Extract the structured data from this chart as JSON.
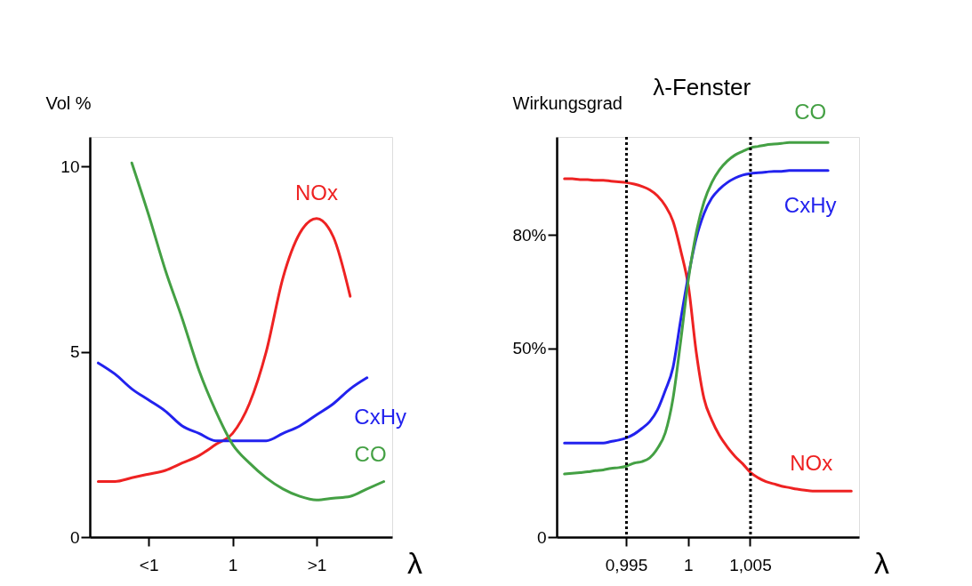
{
  "chart_data": [
    {
      "type": "line",
      "ylabel": "Vol %",
      "xlabel": "λ",
      "categories": [
        null,
        null,
        null,
        "<1",
        null,
        null,
        null,
        null,
        "1",
        null,
        null,
        null,
        null,
        ">1",
        null,
        null,
        null,
        null
      ],
      "ylim": [
        0,
        10.8
      ],
      "yticks": [
        0,
        5,
        10
      ],
      "grid": false,
      "marker": "none",
      "line_style": "solid",
      "series": [
        {
          "name": "NOx",
          "color": "#ee2222",
          "values": [
            1.5,
            1.5,
            1.6,
            1.7,
            1.8,
            2.0,
            2.2,
            2.5,
            2.8,
            3.6,
            5.0,
            7.0,
            8.2,
            8.6,
            8.1,
            6.5,
            null,
            null
          ]
        },
        {
          "name": "CxHy",
          "color": "#2222ee",
          "values": [
            4.7,
            4.4,
            4.0,
            3.7,
            3.4,
            3.0,
            2.8,
            2.6,
            2.6,
            2.6,
            2.6,
            2.8,
            3.0,
            3.3,
            3.6,
            4.0,
            4.3,
            null
          ]
        },
        {
          "name": "CO",
          "color": "#44a044",
          "values": [
            null,
            null,
            10.1,
            8.7,
            7.2,
            5.9,
            4.5,
            3.4,
            2.5,
            2.0,
            1.6,
            1.3,
            1.1,
            1.0,
            1.05,
            1.1,
            1.3,
            1.5
          ]
        }
      ]
    },
    {
      "type": "line",
      "ylabel": "Wirkungsgrad",
      "xlabel": "λ",
      "categories": [
        null,
        null,
        null,
        null,
        null,
        null,
        null,
        null,
        "0,995",
        null,
        null,
        null,
        null,
        null,
        null,
        null,
        "1",
        null,
        null,
        null,
        null,
        null,
        null,
        null,
        "1,005",
        null,
        null,
        null,
        null,
        null,
        null,
        null,
        null,
        null,
        null,
        null,
        null,
        null
      ],
      "ylim": [
        0,
        106
      ],
      "yticks": [
        0,
        {
          "value": 50,
          "label": "50%"
        },
        {
          "value": 80,
          "label": "80%"
        }
      ],
      "grid": false,
      "marker": "none",
      "line_style": "solid",
      "annotations": [
        "λ-Fenster"
      ],
      "ref_lines": [
        {
          "axis": "x",
          "value": "0,995",
          "color": "#000000",
          "line_style": "dotted"
        },
        {
          "axis": "x",
          "value": "1,005",
          "color": "#000000",
          "line_style": "dotted"
        }
      ],
      "series": [
        {
          "name": "NOx",
          "color": "#ee2222",
          "values": [
            94.9,
            94.9,
            94.7,
            94.7,
            94.5,
            94.5,
            94.3,
            94.1,
            93.9,
            93.5,
            92.9,
            92.0,
            90.4,
            87.8,
            83.7,
            75.9,
            66.3,
            49.0,
            36.7,
            31.0,
            26.9,
            23.9,
            21.4,
            19.4,
            17.1,
            15.7,
            14.7,
            14.1,
            13.5,
            13.1,
            12.7,
            12.4,
            12.2,
            12.2,
            12.2,
            12.2,
            12.2,
            12.2
          ]
        },
        {
          "name": "CxHy",
          "color": "#2222ee",
          "values": [
            24.9,
            24.9,
            24.9,
            24.9,
            24.9,
            24.9,
            25.3,
            25.7,
            26.3,
            27.3,
            28.8,
            30.6,
            33.7,
            38.8,
            44.9,
            57.6,
            69.4,
            79.2,
            85.7,
            89.8,
            92.2,
            93.9,
            95.1,
            95.9,
            96.3,
            96.5,
            96.7,
            96.9,
            96.9,
            97.1,
            97.1,
            97.1,
            97.1,
            97.1,
            97.1,
            null,
            null,
            null
          ]
        },
        {
          "name": "CO",
          "color": "#44a044",
          "values": [
            16.7,
            16.9,
            17.1,
            17.3,
            17.6,
            17.8,
            18.2,
            18.4,
            18.8,
            19.6,
            20.0,
            21.0,
            23.5,
            27.6,
            36.7,
            52.0,
            68.4,
            80.6,
            88.8,
            93.9,
            97.3,
            99.6,
            101.2,
            102.2,
            103.1,
            103.5,
            103.9,
            104.1,
            104.3,
            104.5,
            104.5,
            104.5,
            104.5,
            104.5,
            104.5,
            null,
            null,
            null
          ]
        }
      ]
    }
  ]
}
